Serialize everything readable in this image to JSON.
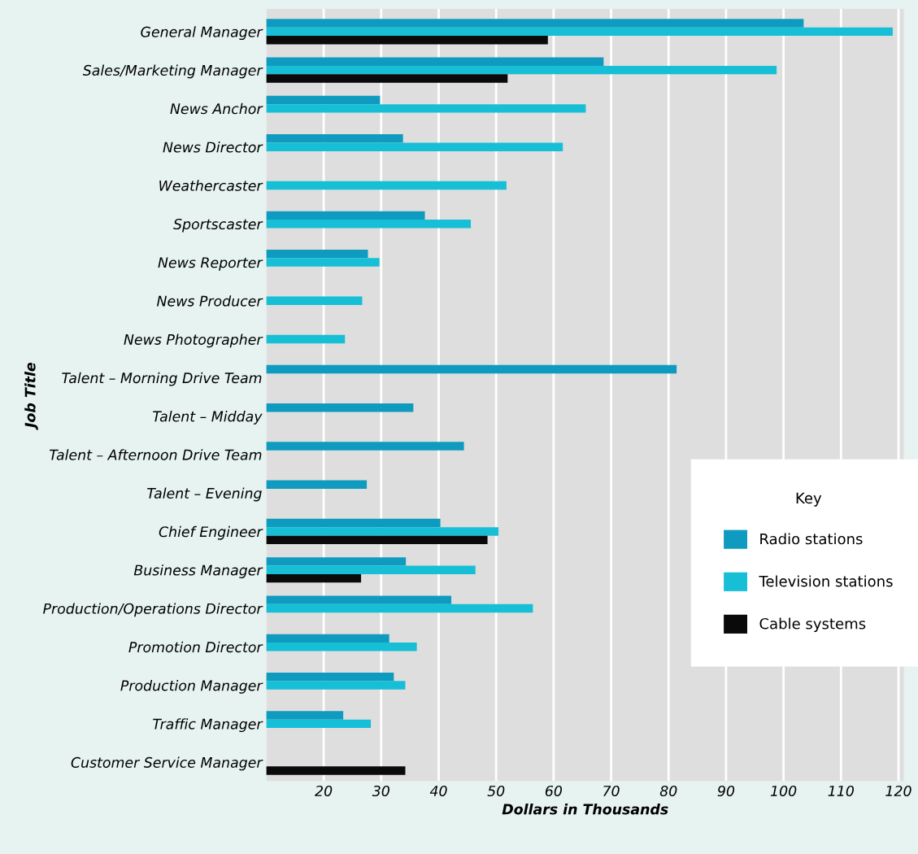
{
  "chart_data": {
    "type": "bar",
    "orientation": "horizontal",
    "xlabel": "Dollars in Thousands",
    "ylabel": "Job Title",
    "legend_title": "Key",
    "categories": [
      "General Manager",
      "Sales/Marketing Manager",
      "News Anchor",
      "News Director",
      "Weathercaster",
      "Sportscaster",
      "News Reporter",
      "News Producer",
      "News Photographer",
      "Talent – Morning Drive Team",
      "Talent – Midday",
      "Talent – Afternoon Drive Team",
      "Talent – Evening",
      "Chief Engineer",
      "Business Manager",
      "Production/Operations Director",
      "Promotion Director",
      "Production Manager",
      "Traffic Manager",
      "Customer Service Manager"
    ],
    "series": [
      {
        "name": "Radio stations",
        "color": "#0f9bbf",
        "values": [
          103.5,
          68.7,
          29.8,
          33.8,
          null,
          37.6,
          27.7,
          null,
          null,
          81.4,
          35.6,
          44.4,
          27.5,
          40.3,
          34.3,
          42.2,
          31.4,
          32.2,
          23.4,
          null
        ]
      },
      {
        "name": "Television stations",
        "color": "#16bfd6",
        "values": [
          119,
          98.8,
          65.6,
          61.6,
          51.8,
          45.6,
          29.7,
          26.7,
          23.7,
          null,
          null,
          null,
          null,
          50.4,
          46.4,
          56.4,
          36.2,
          34.2,
          28.2,
          null
        ]
      },
      {
        "name": "Cable systems",
        "color": "#0a0a0a",
        "values": [
          59,
          52,
          null,
          null,
          null,
          null,
          null,
          null,
          null,
          null,
          null,
          null,
          null,
          48.5,
          26.5,
          null,
          null,
          null,
          null,
          34.2
        ]
      }
    ],
    "xlim": [
      10,
      121
    ],
    "xticks": [
      20,
      30,
      40,
      50,
      60,
      70,
      80,
      90,
      100,
      110,
      120
    ],
    "grid": "x",
    "legend": "bottom right"
  }
}
